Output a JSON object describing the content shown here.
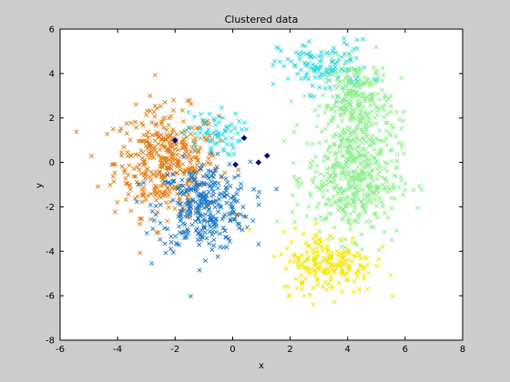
{
  "chart_data": {
    "type": "scatter",
    "title": "Clustered data",
    "xlabel": "x",
    "ylabel": "y",
    "xlim": [
      -6,
      8
    ],
    "ylim": [
      -8,
      6
    ],
    "xticks": [
      "-6",
      "-4",
      "-2",
      "0",
      "2",
      "4",
      "6",
      "8"
    ],
    "yticks": [
      "-8",
      "-6",
      "-4",
      "-2",
      "0",
      "2",
      "4",
      "6"
    ],
    "grid": false,
    "marker": "x",
    "series": [
      {
        "color": "#e07b10",
        "clusters": [
          {
            "cx": -2.3,
            "cy": 0.0,
            "sx": 0.9,
            "sy": 1.2,
            "n": 420
          }
        ]
      },
      {
        "color": "#1a78c8",
        "clusters": [
          {
            "cx": -1.0,
            "cy": -2.0,
            "sx": 0.8,
            "sy": 1.0,
            "n": 330
          }
        ]
      },
      {
        "color": "#2ed6e0",
        "clusters": [
          {
            "cx": -0.7,
            "cy": 1.3,
            "sx": 0.5,
            "sy": 0.5,
            "n": 70
          },
          {
            "cx": 3.2,
            "cy": 4.3,
            "sx": 0.8,
            "sy": 0.6,
            "n": 130
          }
        ]
      },
      {
        "color": "#90ee90",
        "clusters": [
          {
            "cx": 4.3,
            "cy": 2.6,
            "sx": 0.6,
            "sy": 1.0,
            "n": 280
          },
          {
            "cx": 4.2,
            "cy": -0.7,
            "sx": 0.8,
            "sy": 1.3,
            "n": 480
          }
        ]
      },
      {
        "color": "#f5e600",
        "clusters": [
          {
            "cx": 3.3,
            "cy": -4.5,
            "sx": 0.8,
            "sy": 0.7,
            "n": 210
          }
        ]
      }
    ],
    "centroids": {
      "color": "#00008b",
      "points": [
        [
          -2.0,
          1.0
        ],
        [
          0.4,
          1.1
        ],
        [
          0.1,
          -0.1
        ],
        [
          0.9,
          0.0
        ],
        [
          1.2,
          0.3
        ]
      ]
    }
  }
}
